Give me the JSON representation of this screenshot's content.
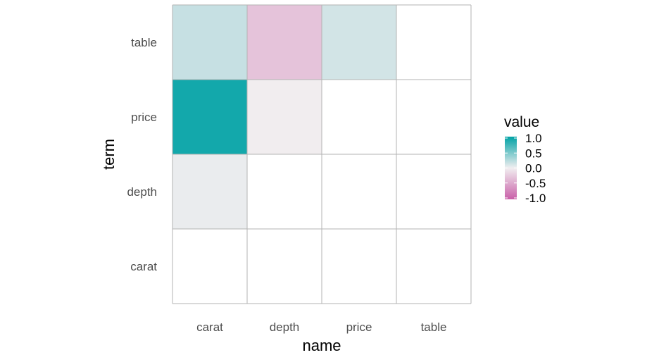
{
  "chart_data": {
    "type": "heatmap",
    "title": "",
    "xlabel": "name",
    "ylabel": "term",
    "x_categories": [
      "carat",
      "depth",
      "price",
      "table"
    ],
    "y_categories": [
      "carat",
      "depth",
      "price",
      "table"
    ],
    "cells": [
      {
        "x": "carat",
        "y": "depth",
        "value": 0.03
      },
      {
        "x": "carat",
        "y": "price",
        "value": 0.92
      },
      {
        "x": "carat",
        "y": "table",
        "value": 0.18
      },
      {
        "x": "depth",
        "y": "price",
        "value": -0.01
      },
      {
        "x": "depth",
        "y": "table",
        "value": -0.3
      },
      {
        "x": "price",
        "y": "table",
        "value": 0.13
      }
    ],
    "legend": {
      "title": "value",
      "position": "right",
      "ticks": [
        "1.0",
        "0.5",
        "0.0",
        "-0.5",
        "-1.0"
      ],
      "range": [
        -1,
        1
      ],
      "colors": {
        "low": "#c95fa8",
        "mid": "#f1eef0",
        "high": "#00a2a5"
      }
    },
    "grid": true
  }
}
